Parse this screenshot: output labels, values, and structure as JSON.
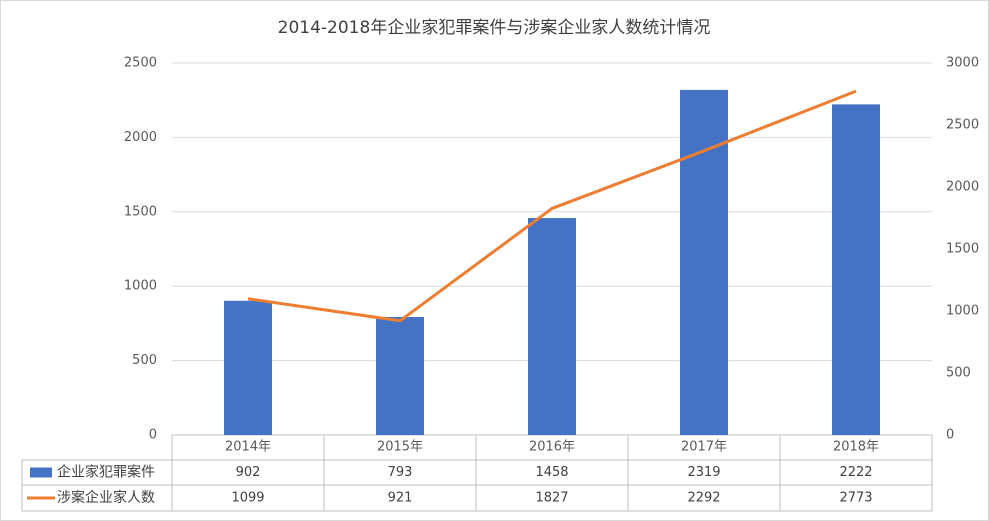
{
  "chart_data": {
    "type": "bar",
    "title": "2014-2018年企业家犯罪案件与涉案企业家人数统计情况",
    "categories": [
      "2014年",
      "2015年",
      "2016年",
      "2017年",
      "2018年"
    ],
    "series": [
      {
        "name": "企业家犯罪案件",
        "type": "bar",
        "color": "#4472c4",
        "values": [
          902,
          793,
          1458,
          2319,
          2222
        ]
      },
      {
        "name": "涉案企业家人数",
        "type": "line",
        "axis": "y2",
        "color": "#ed7d31",
        "values": [
          1099,
          921,
          1827,
          2292,
          2773
        ]
      }
    ],
    "ylim": [
      0,
      2500
    ],
    "yticks": [
      0,
      500,
      1000,
      1500,
      2000,
      2500
    ],
    "y2lim": [
      0,
      3000
    ],
    "y2ticks": [
      0,
      500,
      1000,
      1500,
      2000,
      2500,
      3000
    ],
    "grid": true
  }
}
